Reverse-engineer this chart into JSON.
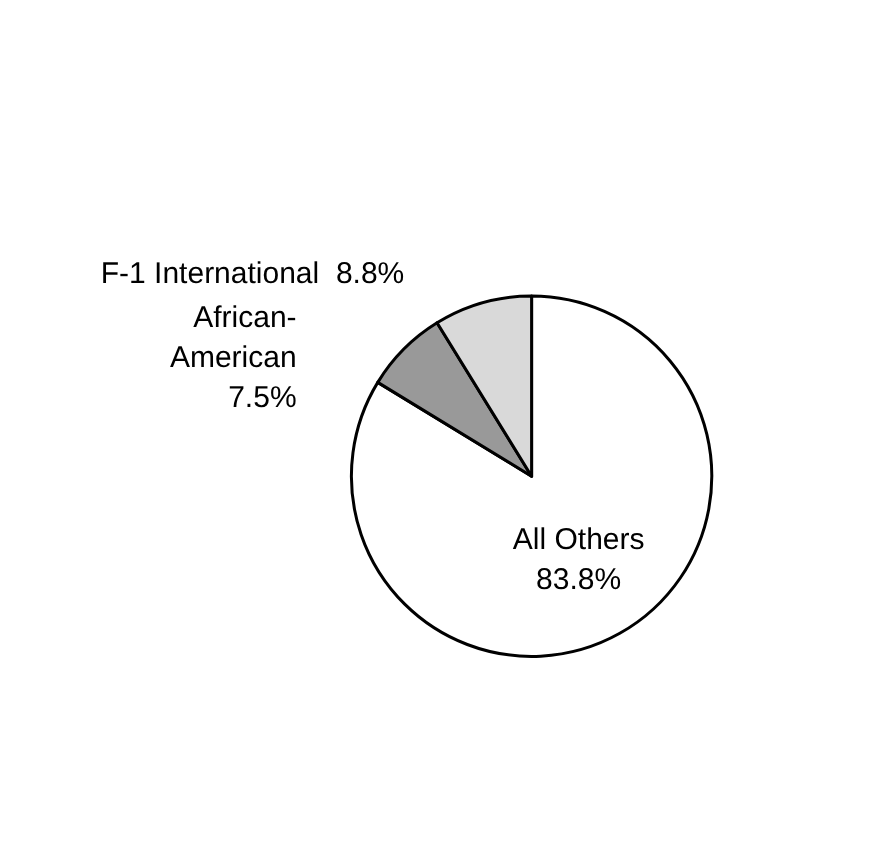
{
  "chart_data": {
    "type": "pie",
    "categories": [
      "All Others",
      "African-American",
      "F-1 International"
    ],
    "values": [
      83.8,
      7.5,
      8.8
    ],
    "value_labels": [
      "83.8%",
      "7.5%",
      "8.8%"
    ],
    "colors": [
      "#ffffff",
      "#999999",
      "#d9d9d9"
    ],
    "legend": false
  }
}
